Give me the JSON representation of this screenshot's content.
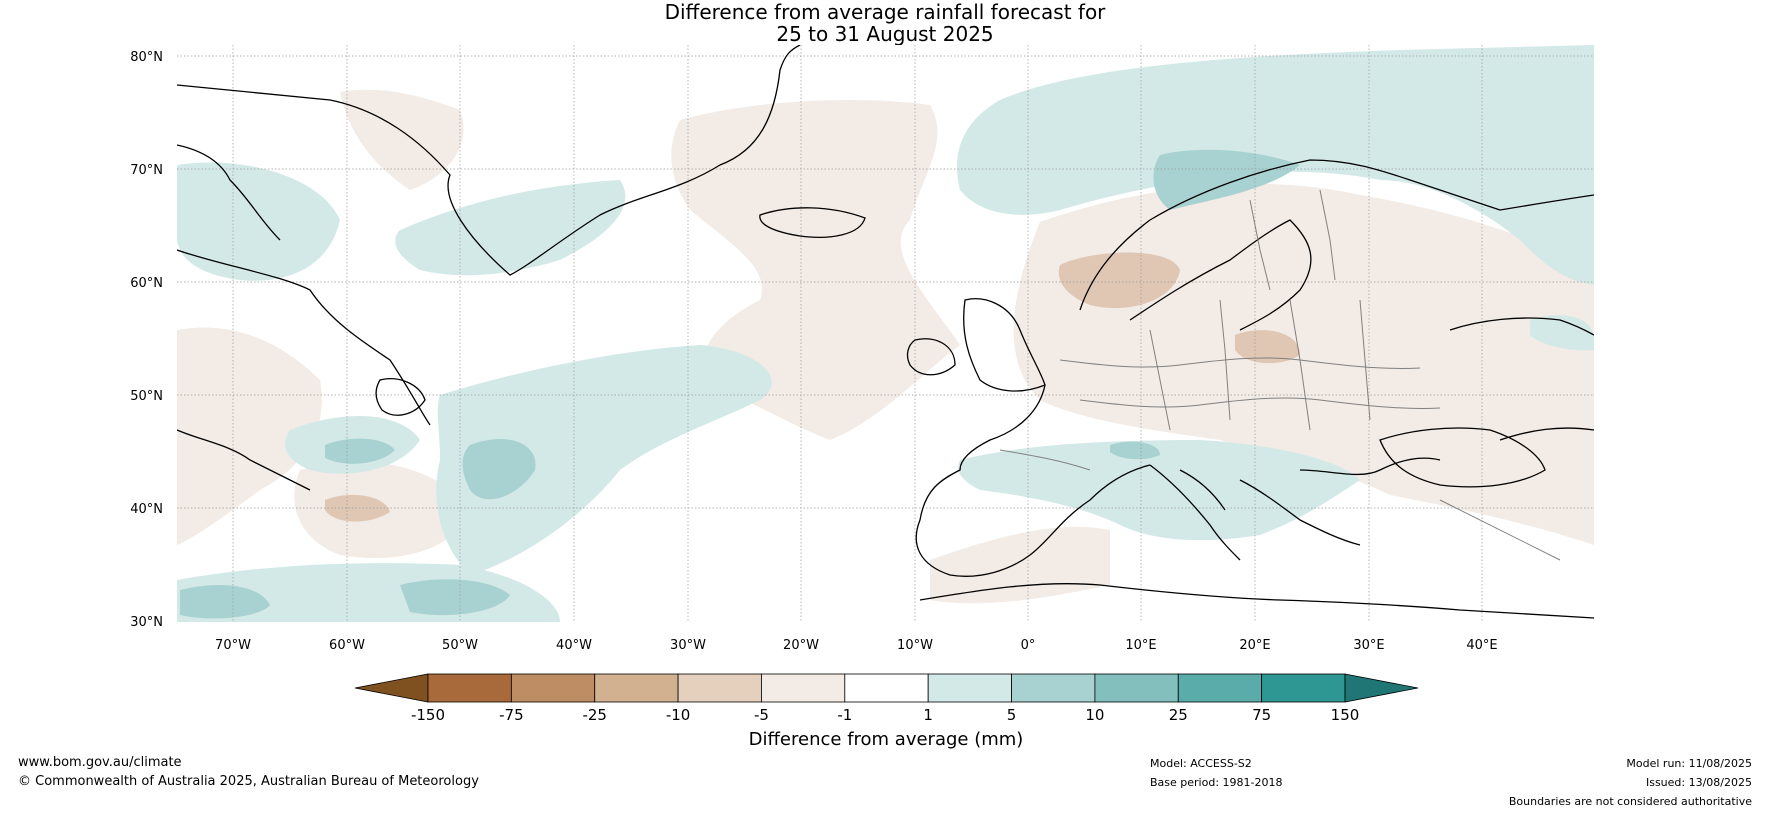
{
  "title": {
    "line1": "Difference from average rainfall forecast for",
    "line2": "25 to 31 August 2025"
  },
  "map": {
    "lat_labels": [
      "80°N",
      "70°N",
      "60°N",
      "50°N",
      "40°N",
      "30°N"
    ],
    "lon_labels": [
      "70°W",
      "60°W",
      "50°W",
      "40°W",
      "30°W",
      "20°W",
      "10°W",
      "0°",
      "10°E",
      "20°E",
      "30°E",
      "40°E"
    ],
    "land_color": "#ffffff",
    "coast_color": "#000000",
    "border_color": "#808080"
  },
  "colorbar": {
    "label": "Difference from average (mm)",
    "ticks": [
      "-150",
      "-75",
      "-25",
      "-10",
      "-5",
      "-1",
      "1",
      "5",
      "10",
      "25",
      "75",
      "150"
    ],
    "colors": [
      "#7f5020",
      "#a86a3a",
      "#bf8d64",
      "#d2b191",
      "#e5d0bd",
      "#f3ebe5",
      "#ffffff",
      "#d3e9e8",
      "#a8d2d1",
      "#82bfbd",
      "#5aacab",
      "#2e9793",
      "#1f7674"
    ]
  },
  "footer": {
    "url": "www.bom.gov.au/climate",
    "copyright": "© Commonwealth of Australia 2025, Australian Bureau of Meteorology",
    "model": "Model: ACCESS-S2",
    "base_period": "Base period: 1981-2018",
    "model_run": "Model run: 11/08/2025",
    "issued": "Issued: 13/08/2025",
    "disclaimer": "Boundaries are not considered authoritative"
  }
}
